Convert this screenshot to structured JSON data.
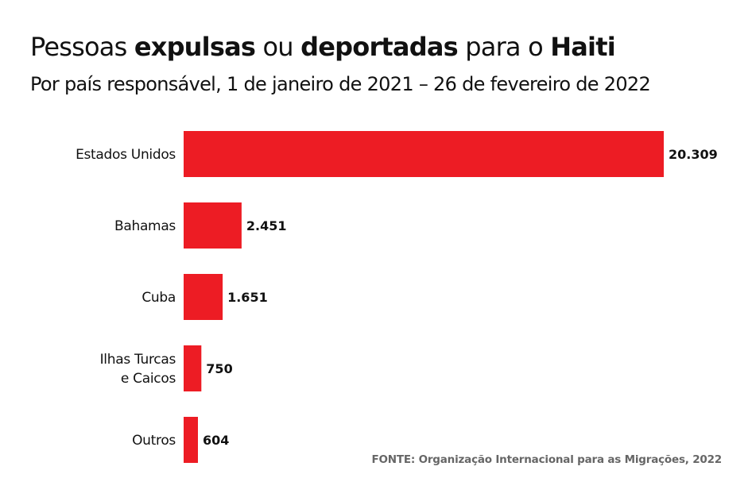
{
  "title_parts": [
    {
      "text": "Pessoas ",
      "bold": false
    },
    {
      "text": "expulsas",
      "bold": true
    },
    {
      "text": " ou ",
      "bold": false
    },
    {
      "text": "deportadas",
      "bold": true
    },
    {
      "text": " para o ",
      "bold": false
    },
    {
      "text": "Haiti",
      "bold": true
    }
  ],
  "subtitle": "Por país responsável, 1 de janeiro de 2021 – 26 de fevereiro de 2022",
  "source": "FONTE: Organização Internacional para as Migrações, 2022",
  "colors": {
    "bar": "#ED1C24"
  },
  "chart_data": {
    "type": "bar",
    "orientation": "horizontal",
    "title": "Pessoas expulsas ou deportadas para o Haiti",
    "subtitle": "Por país responsável, 1 de janeiro de 2021 – 26 de fevereiro de 2022",
    "categories": [
      [
        "Estados Unidos"
      ],
      [
        "Bahamas"
      ],
      [
        "Cuba"
      ],
      [
        "Ilhas Turcas",
        "e Caicos"
      ],
      [
        "Outros"
      ]
    ],
    "values": [
      20309,
      2451,
      1651,
      750,
      604
    ],
    "value_labels": [
      "20.309",
      "2.451",
      "1.651",
      "750",
      "604"
    ],
    "grid": false,
    "xlim": [
      0,
      20309
    ]
  }
}
